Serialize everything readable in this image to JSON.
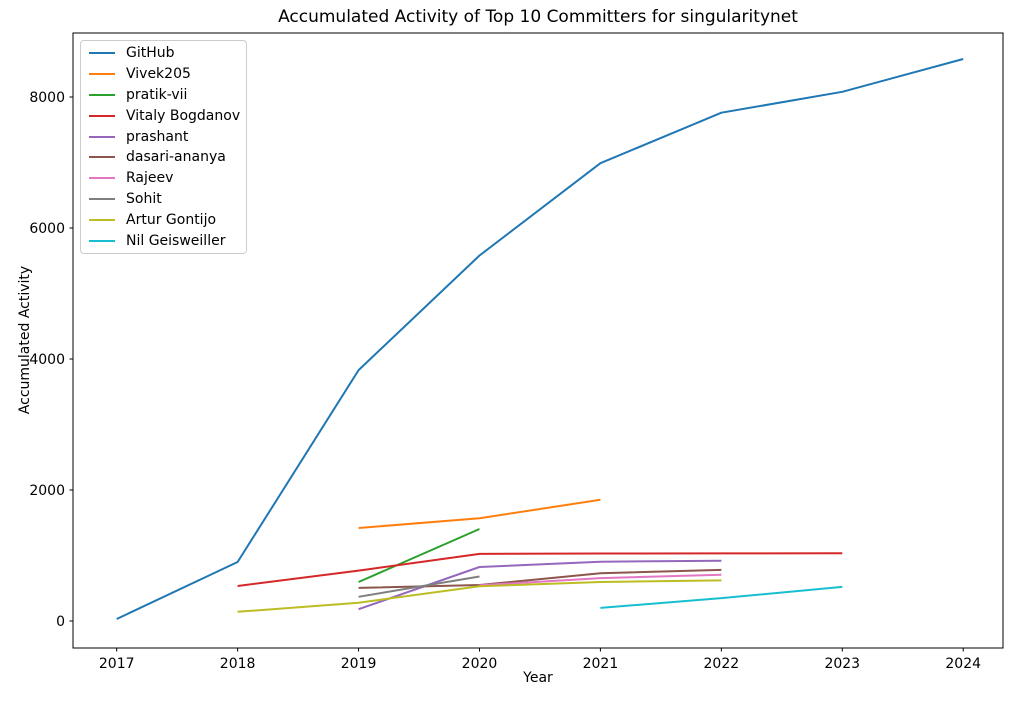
{
  "chart_data": {
    "type": "line",
    "title": "Accumulated Activity of Top 10 Committers for singularitynet",
    "xlabel": "Year",
    "ylabel": "Accumulated Activity",
    "x_ticks": [
      2017,
      2018,
      2019,
      2020,
      2021,
      2022,
      2023,
      2024
    ],
    "y_ticks": [
      0,
      2000,
      4000,
      6000,
      8000
    ],
    "xlim": [
      2016.65,
      2024.35
    ],
    "ylim": [
      -400,
      9000
    ],
    "grid": false,
    "legend_position": "upper left",
    "series": [
      {
        "name": "GitHub",
        "color": "#1f77b4",
        "x": [
          2017,
          2018,
          2019,
          2020,
          2021,
          2022,
          2023,
          2024
        ],
        "values": [
          30,
          900,
          3830,
          5580,
          6990,
          7760,
          8080,
          8580
        ]
      },
      {
        "name": "Vivek205",
        "color": "#ff7f0e",
        "x": [
          2019,
          2020,
          2021
        ],
        "values": [
          1420,
          1570,
          1850
        ]
      },
      {
        "name": "pratik-vii",
        "color": "#2ca02c",
        "x": [
          2019,
          2020
        ],
        "values": [
          595,
          1405
        ]
      },
      {
        "name": "Vitaly Bogdanov",
        "color": "#d62728",
        "x": [
          2018,
          2019,
          2020,
          2021,
          2022,
          2023
        ],
        "values": [
          535,
          770,
          1025,
          1030,
          1032,
          1035
        ]
      },
      {
        "name": "prashant",
        "color": "#9467bd",
        "x": [
          2019,
          2020,
          2021,
          2022
        ],
        "values": [
          180,
          825,
          905,
          920
        ]
      },
      {
        "name": "dasari-ananya",
        "color": "#8c564b",
        "x": [
          2019,
          2020,
          2021,
          2022
        ],
        "values": [
          505,
          550,
          730,
          780
        ]
      },
      {
        "name": "Rajeev",
        "color": "#e377c2",
        "x": [
          2020,
          2021,
          2022
        ],
        "values": [
          545,
          655,
          705
        ]
      },
      {
        "name": "Sohit",
        "color": "#7f7f7f",
        "x": [
          2019,
          2020
        ],
        "values": [
          370,
          680
        ]
      },
      {
        "name": "Artur Gontijo",
        "color": "#bcbd22",
        "x": [
          2018,
          2019,
          2020,
          2021,
          2022
        ],
        "values": [
          140,
          280,
          530,
          595,
          620
        ]
      },
      {
        "name": "Nil Geisweiller",
        "color": "#17becf",
        "x": [
          2021,
          2022,
          2023
        ],
        "values": [
          200,
          350,
          520
        ]
      }
    ]
  }
}
